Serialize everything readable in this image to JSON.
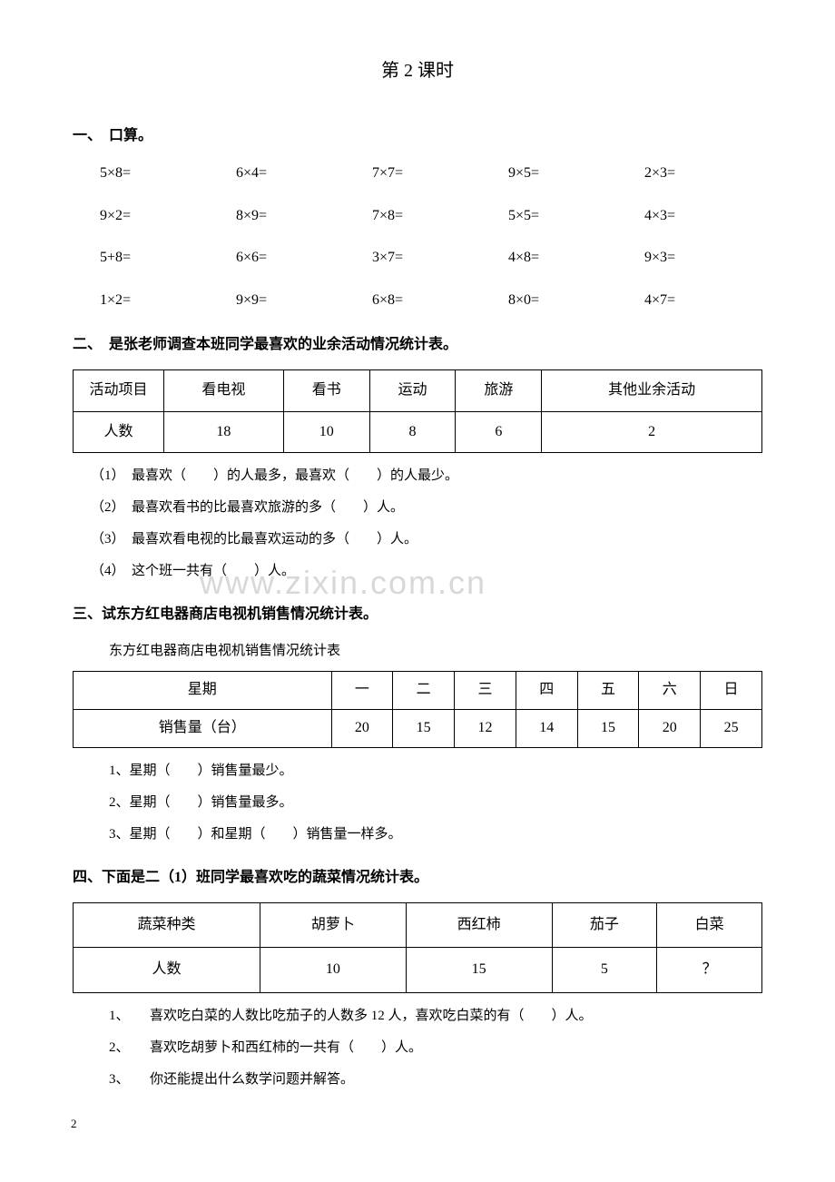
{
  "title": "第 2 课时",
  "section1": {
    "header": "一、　口算。",
    "items": [
      "5×8=",
      "6×4=",
      "7×7=",
      "9×5=",
      "2×3=",
      "9×2=",
      "8×9=",
      "7×8=",
      "5×5=",
      "4×3=",
      "5+8=",
      "6×6=",
      "3×7=",
      "4×8=",
      "9×3=",
      "1×2=",
      "9×9=",
      "6×8=",
      "8×0=",
      "4×7="
    ]
  },
  "section2": {
    "header": "二、　是张老师调查本班同学最喜欢的业余活动情况统计表。",
    "table": {
      "headers": [
        "活动项目",
        "看电视",
        "看书",
        "运动",
        "旅游",
        "其他业余活动"
      ],
      "row_label": "人数",
      "values": [
        "18",
        "10",
        "8",
        "6",
        "2"
      ]
    },
    "questions": [
      "（1）　最喜欢（　　）的人最多，最喜欢（　　）的人最少。",
      "（2）　最喜欢看书的比最喜欢旅游的多（　　）人。",
      "（3）　最喜欢看电视的比最喜欢运动的多（　　）人。",
      "（4）　这个班一共有（　　）人。"
    ]
  },
  "section3": {
    "header": "三、试东方红电器商店电视机销售情况统计表。",
    "caption": "东方红电器商店电视机销售情况统计表",
    "table": {
      "headers": [
        "星期",
        "一",
        "二",
        "三",
        "四",
        "五",
        "六",
        "日"
      ],
      "row_label": "销售量（台）",
      "values": [
        "20",
        "15",
        "12",
        "14",
        "15",
        "20",
        "25"
      ]
    },
    "questions": [
      "1、星期（　　）销售量最少。",
      "2、星期（　　）销售量最多。",
      "3、星期（　　）和星期（　　）销售量一样多。"
    ]
  },
  "section4": {
    "header": "四、下面是二（1）班同学最喜欢吃的蔬菜情况统计表。",
    "table": {
      "headers": [
        "蔬菜种类",
        "胡萝卜",
        "西红柿",
        "茄子",
        "白菜"
      ],
      "row_label": "人数",
      "values": [
        "10",
        "15",
        "5",
        "？"
      ]
    },
    "questions": [
      "1、　　喜欢吃白菜的人数比吃茄子的人数多 12 人，喜欢吃白菜的有（　　）人。",
      "2、　　喜欢吃胡萝卜和西红柿的一共有（　　）人。",
      "3、　　你还能提出什么数学问题并解答。"
    ]
  },
  "watermark": "www.zixin.com.cn",
  "page_number": "2"
}
